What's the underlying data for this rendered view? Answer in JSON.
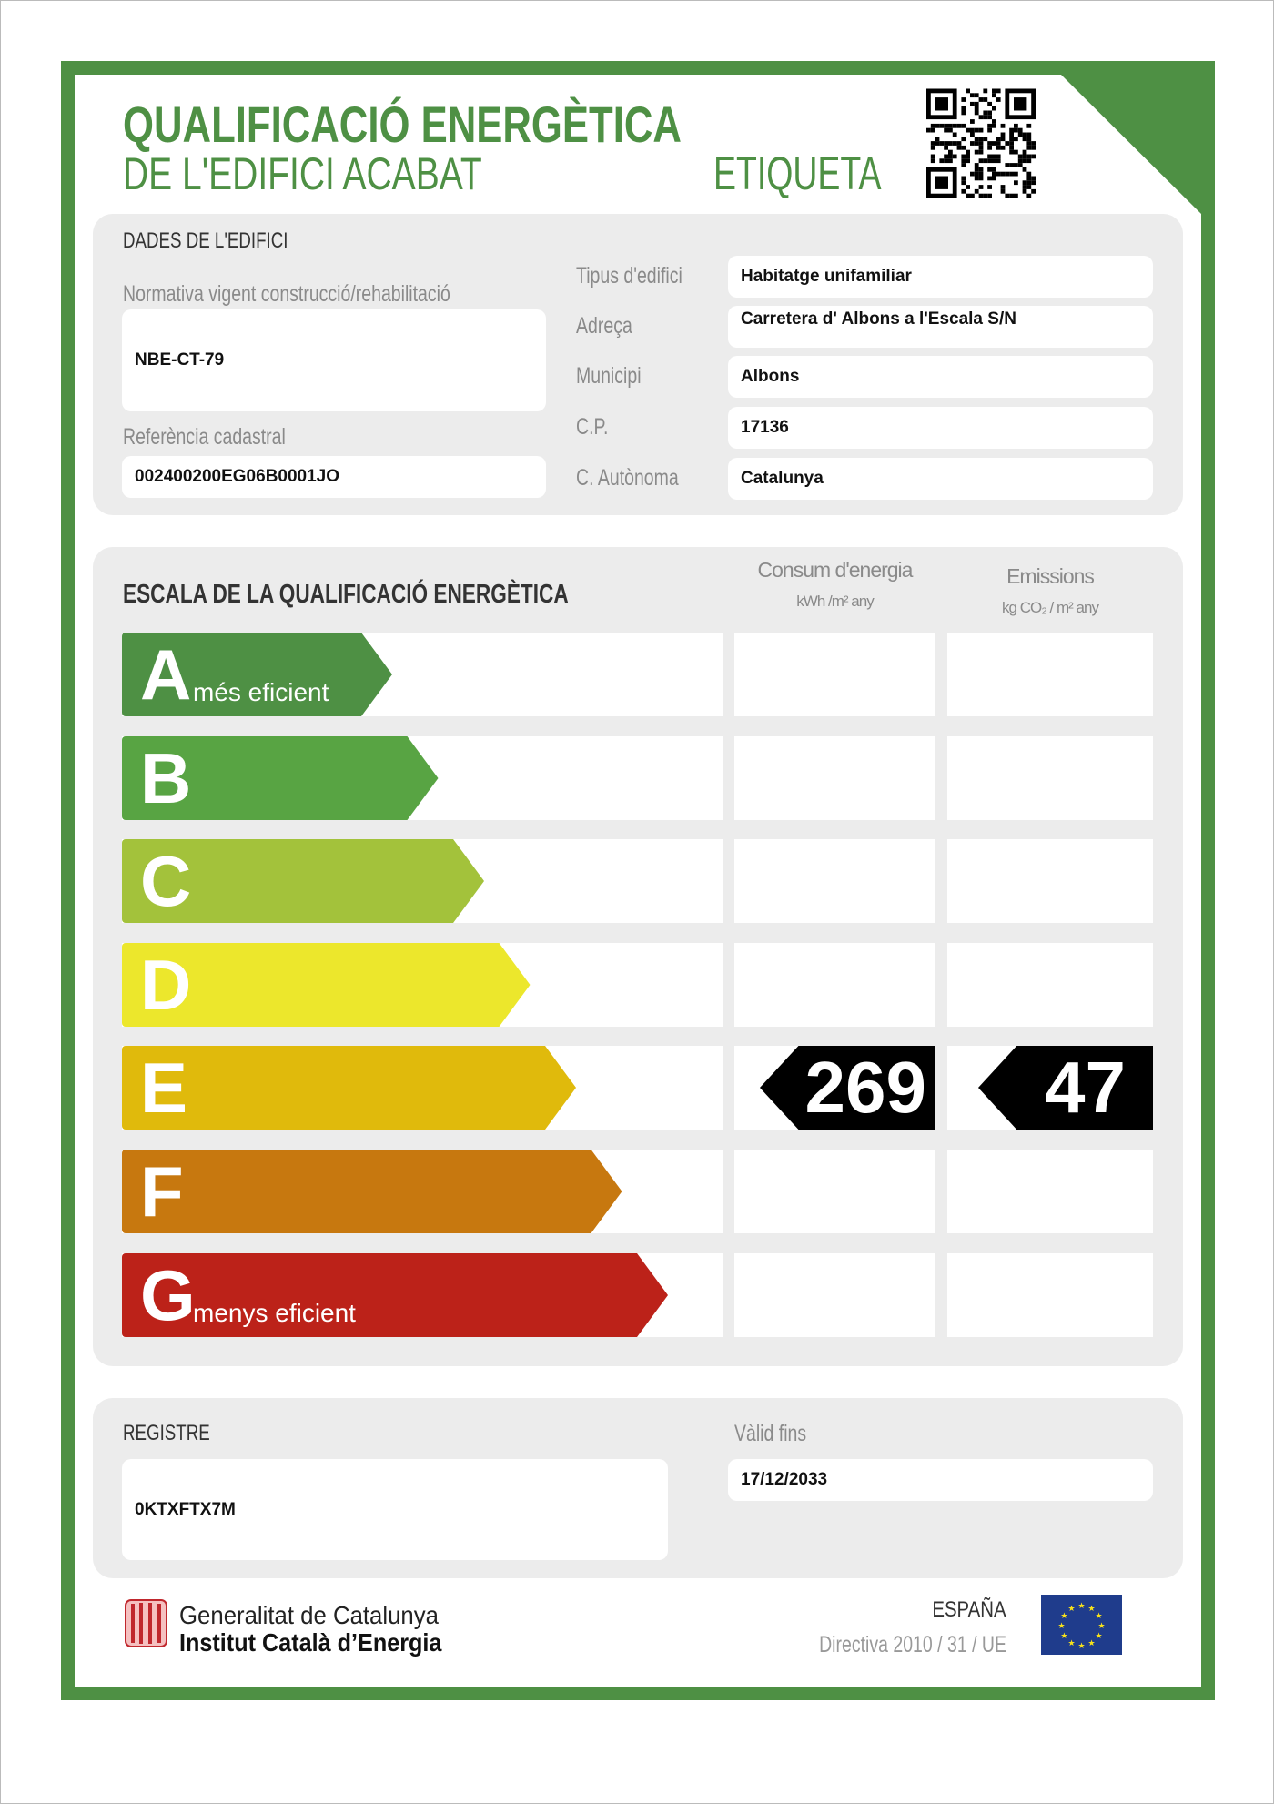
{
  "header": {
    "title_line1": "QUALIFICACIÓ ENERGÈTICA",
    "title_line2": "DE L'EDIFICI ACABAT",
    "label": "ETIQUETA",
    "qr_icon": "qr-code-icon"
  },
  "building": {
    "section_title": "DADES DE L'EDIFICI",
    "normativa_label": "Normativa vigent construcció/rehabilitació",
    "normativa_value": "NBE-CT-79",
    "cadastral_label": "Referència cadastral",
    "cadastral_value": "002400200EG06B0001JO",
    "fields": [
      {
        "label": "Tipus d'edifici",
        "value": "Habitatge unifamiliar"
      },
      {
        "label": "Adreça",
        "value": "Carretera d' Albons a l'Escala S/N"
      },
      {
        "label": "Municipi",
        "value": "Albons"
      },
      {
        "label": "C.P.",
        "value": "17136"
      },
      {
        "label": "C. Autònoma",
        "value": "Catalunya"
      }
    ]
  },
  "scale": {
    "section_title": "ESCALA DE LA QUALIFICACIÓ ENERGÈTICA",
    "col_energy": "Consum d'energia",
    "col_energy_unit": "kWh /m² any",
    "col_emissions": "Emissions",
    "col_emissions_unit": "kg CO₂ / m² any",
    "classes": [
      {
        "letter": "A",
        "sub": "més eficient",
        "color": "#4e9044"
      },
      {
        "letter": "B",
        "sub": "",
        "color": "#58a443"
      },
      {
        "letter": "C",
        "sub": "",
        "color": "#a3c23b"
      },
      {
        "letter": "D",
        "sub": "",
        "color": "#ece72c"
      },
      {
        "letter": "E",
        "sub": "",
        "color": "#e0ba0c"
      },
      {
        "letter": "F",
        "sub": "",
        "color": "#c7780f"
      },
      {
        "letter": "G",
        "sub": "menys eficient",
        "color": "#bc2219"
      }
    ],
    "rating_class": "E",
    "energy_value": "269",
    "emissions_value": "47"
  },
  "registry": {
    "label": "REGISTRE",
    "value": "0KTXFTX7M",
    "valid_label": "Vàlid fins",
    "valid_value": "17/12/2033"
  },
  "footer": {
    "org_line1": "Generalitat de Catalunya",
    "org_line2": "Institut Català d’Energia",
    "country": "ESPAÑA",
    "directive": "Directiva 2010 / 31 / UE"
  }
}
